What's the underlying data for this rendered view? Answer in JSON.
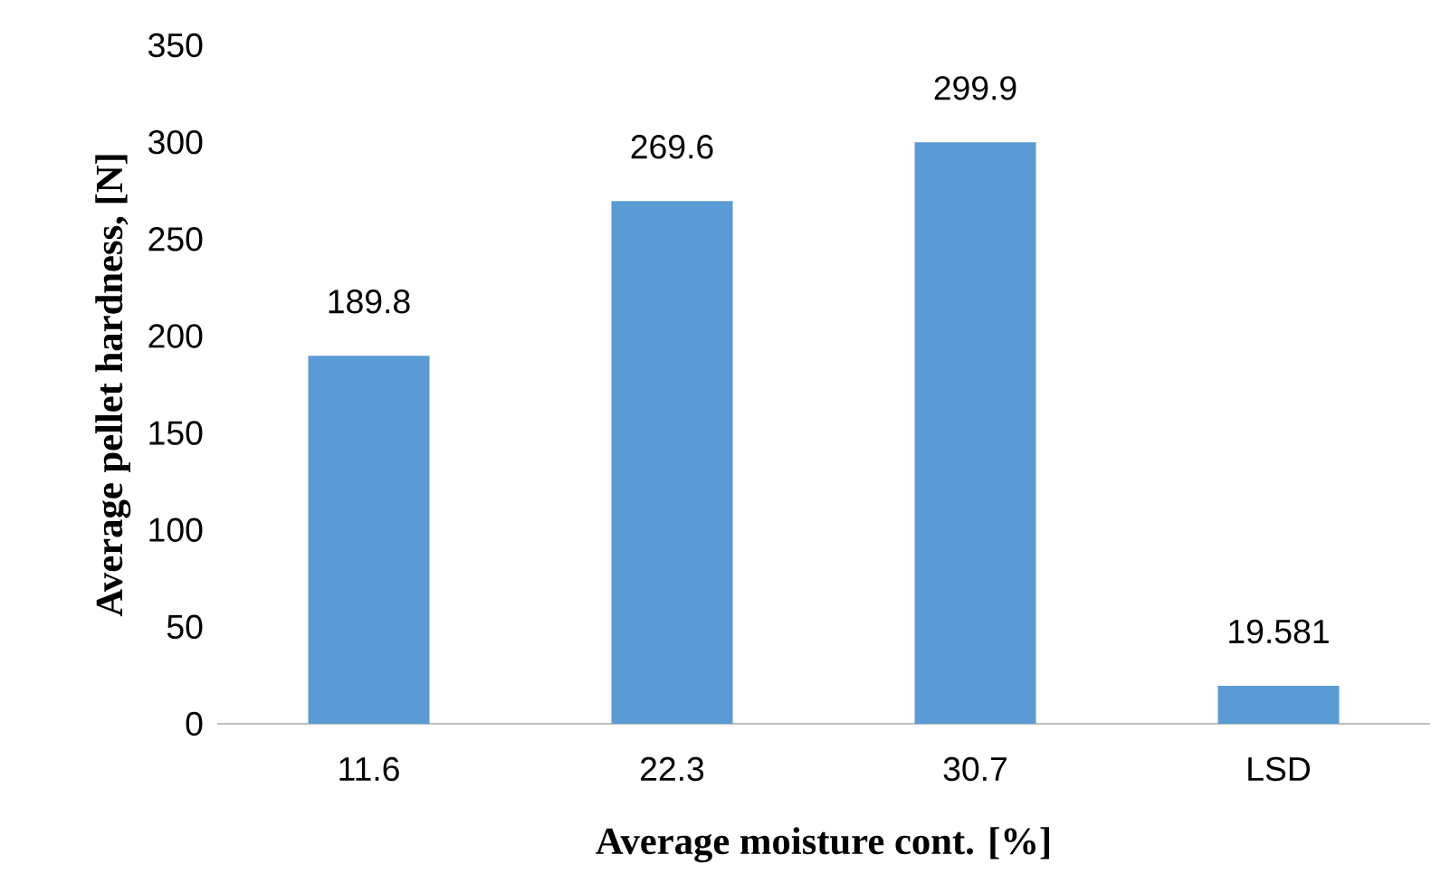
{
  "chart_data": {
    "type": "bar",
    "xlabel": "Average moisture cont. [%]",
    "ylabel": "Average pellet hardness, [N]",
    "categories": [
      "11.6",
      "22.3",
      "30.7",
      "LSD"
    ],
    "values": [
      189.8,
      269.6,
      299.9,
      19.581
    ],
    "color": "#5b9bd5",
    "ylim": [
      0,
      350
    ],
    "yticks": [
      0,
      50,
      100,
      150,
      200,
      250,
      300,
      350
    ],
    "data_labels": true
  }
}
